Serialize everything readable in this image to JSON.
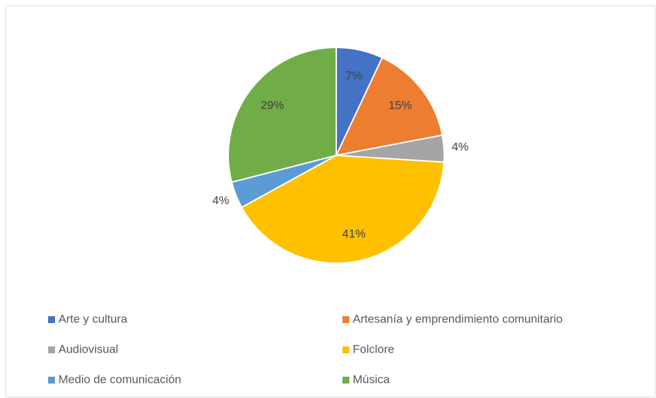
{
  "chart_data": {
    "type": "pie",
    "categories": [
      "Arte y cultura",
      "Artesanía y emprendimiento comunitario",
      "Audiovisual",
      "Folclore",
      "Medio de comunicación",
      "Música"
    ],
    "values": [
      7,
      15,
      4,
      41,
      4,
      29
    ],
    "value_labels": [
      "7%",
      "15%",
      "4%",
      "41%",
      "4%",
      "29%"
    ],
    "colors": [
      "#4472c4",
      "#ed7d31",
      "#a5a5a5",
      "#ffc000",
      "#5b9bd5",
      "#70ad47"
    ],
    "legend": "bottom"
  }
}
